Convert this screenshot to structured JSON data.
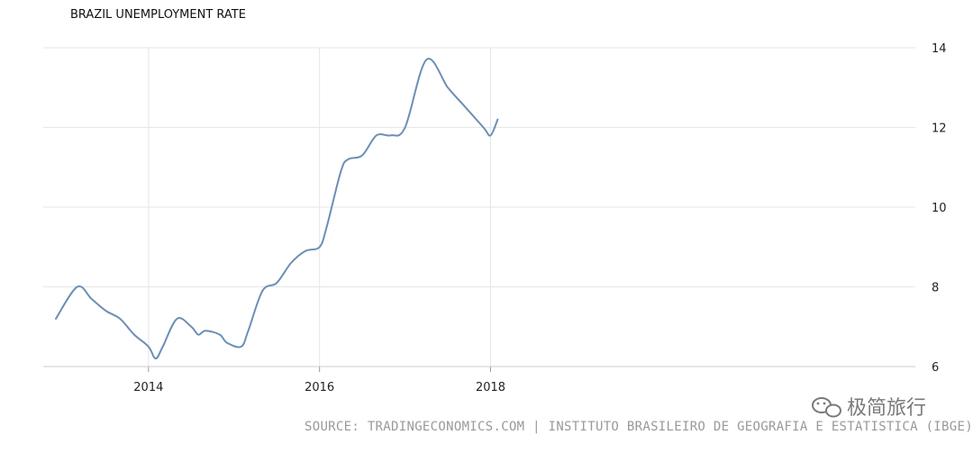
{
  "chart_data": {
    "type": "line",
    "title": "BRAZIL UNEMPLOYMENT RATE",
    "xlabel": "",
    "ylabel": "",
    "x_tick_labels": [
      "2014",
      "2016",
      "2018"
    ],
    "y_tick_labels": [
      "6",
      "8",
      "10",
      "12",
      "14"
    ],
    "xlim": [
      "2012-12",
      "2018-01"
    ],
    "ylim": [
      6,
      14
    ],
    "grid": true,
    "y_axis_side": "right",
    "series": [
      {
        "color": "#6b8fb5",
        "points": [
          {
            "x": "2012-12",
            "y": 7.2
          },
          {
            "x": "2013-03",
            "y": 8.0
          },
          {
            "x": "2013-05",
            "y": 7.7
          },
          {
            "x": "2013-07",
            "y": 7.4
          },
          {
            "x": "2013-09",
            "y": 7.2
          },
          {
            "x": "2013-11",
            "y": 6.8
          },
          {
            "x": "2014-01",
            "y": 6.5
          },
          {
            "x": "2014-02",
            "y": 6.2
          },
          {
            "x": "2014-03",
            "y": 6.5
          },
          {
            "x": "2014-05",
            "y": 7.2
          },
          {
            "x": "2014-07",
            "y": 7.0
          },
          {
            "x": "2014-08",
            "y": 6.8
          },
          {
            "x": "2014-09",
            "y": 6.9
          },
          {
            "x": "2014-11",
            "y": 6.8
          },
          {
            "x": "2014-12",
            "y": 6.6
          },
          {
            "x": "2015-02",
            "y": 6.5
          },
          {
            "x": "2015-03",
            "y": 6.9
          },
          {
            "x": "2015-05",
            "y": 7.9
          },
          {
            "x": "2015-07",
            "y": 8.1
          },
          {
            "x": "2015-09",
            "y": 8.6
          },
          {
            "x": "2015-11",
            "y": 8.9
          },
          {
            "x": "2016-01",
            "y": 9.0
          },
          {
            "x": "2016-02",
            "y": 9.5
          },
          {
            "x": "2016-04",
            "y": 10.9
          },
          {
            "x": "2016-05",
            "y": 11.2
          },
          {
            "x": "2016-07",
            "y": 11.3
          },
          {
            "x": "2016-09",
            "y": 11.8
          },
          {
            "x": "2016-11",
            "y": 11.8
          },
          {
            "x": "2017-01",
            "y": 12.0
          },
          {
            "x": "2017-04",
            "y": 13.7
          },
          {
            "x": "2017-07",
            "y": 13.0
          },
          {
            "x": "2017-09",
            "y": 12.6
          },
          {
            "x": "2017-12",
            "y": 12.0
          },
          {
            "x": "2018-01",
            "y": 11.8
          },
          {
            "x": "2018-02",
            "y": 12.2
          }
        ]
      }
    ]
  },
  "source": "SOURCE: TRADINGECONOMICS.COM | INSTITUTO BRASILEIRO DE GEOGRAFIA E ESTATISTICA (IBGE)",
  "watermark": {
    "text": "极简旅行",
    "icon": "wechat-icon"
  }
}
